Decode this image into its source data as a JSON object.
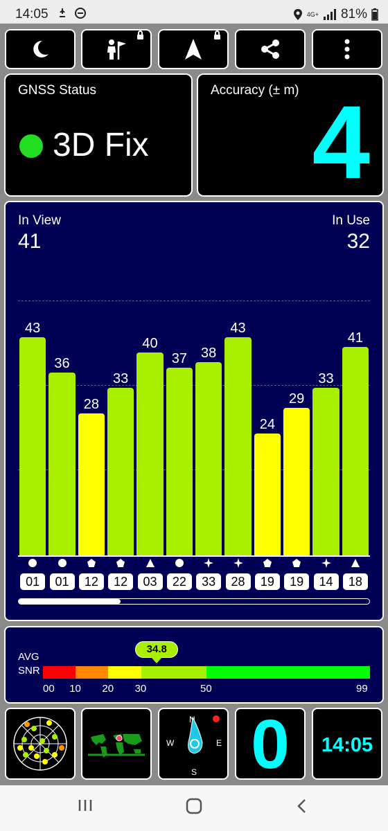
{
  "status_bar": {
    "time": "14:05",
    "network": "4G+",
    "battery": "81%"
  },
  "toolbar": [
    {
      "name": "night-mode-button",
      "icon": "moon-icon",
      "locked": false
    },
    {
      "name": "observer-button",
      "icon": "person-flag-icon",
      "locked": true
    },
    {
      "name": "navigation-button",
      "icon": "navigation-arrow-icon",
      "locked": true
    },
    {
      "name": "share-button",
      "icon": "share-icon",
      "locked": false
    },
    {
      "name": "more-button",
      "icon": "more-vertical-icon",
      "locked": false
    }
  ],
  "gnss": {
    "label": "GNSS Status",
    "fix": "3D Fix",
    "fix_color": "#22dd22"
  },
  "accuracy": {
    "label": "Accuracy (± m)",
    "value": "4",
    "color": "#00ffff"
  },
  "satellites": {
    "in_view_label": "In View",
    "in_view": "41",
    "in_use_label": "In Use",
    "in_use": "32",
    "scroll_fraction": 0.29
  },
  "chart_data": {
    "type": "bar",
    "categories": [
      "01",
      "01",
      "12",
      "12",
      "03",
      "22",
      "33",
      "28",
      "19",
      "19",
      "14",
      "18"
    ],
    "values": [
      43,
      36,
      28,
      33,
      40,
      37,
      38,
      43,
      24,
      29,
      33,
      41
    ],
    "constellations": [
      "circle",
      "circle",
      "pentagon",
      "pentagon",
      "triangle",
      "circle",
      "star",
      "star",
      "pentagon",
      "pentagon",
      "star",
      "triangle"
    ],
    "colors": {
      "high": "#a8f000",
      "low": "#ffff00",
      "threshold": 30
    },
    "ylim": [
      0,
      60
    ],
    "grid": true
  },
  "snr": {
    "label_top": "AVG",
    "label_bottom": "SNR",
    "avg": "34.8",
    "avg_value": 34.8,
    "ticks": [
      "00",
      "10",
      "20",
      "30",
      "50",
      "99"
    ],
    "scale_colors": [
      "#ff0000",
      "#ff8800",
      "#ffff00",
      "#a8f000",
      "#00ff00"
    ]
  },
  "bottom": {
    "clock": "14:05",
    "speed": "0",
    "compass": {
      "n": "N",
      "e": "E",
      "s": "S",
      "w": "W"
    },
    "accent": "#00ffff"
  }
}
